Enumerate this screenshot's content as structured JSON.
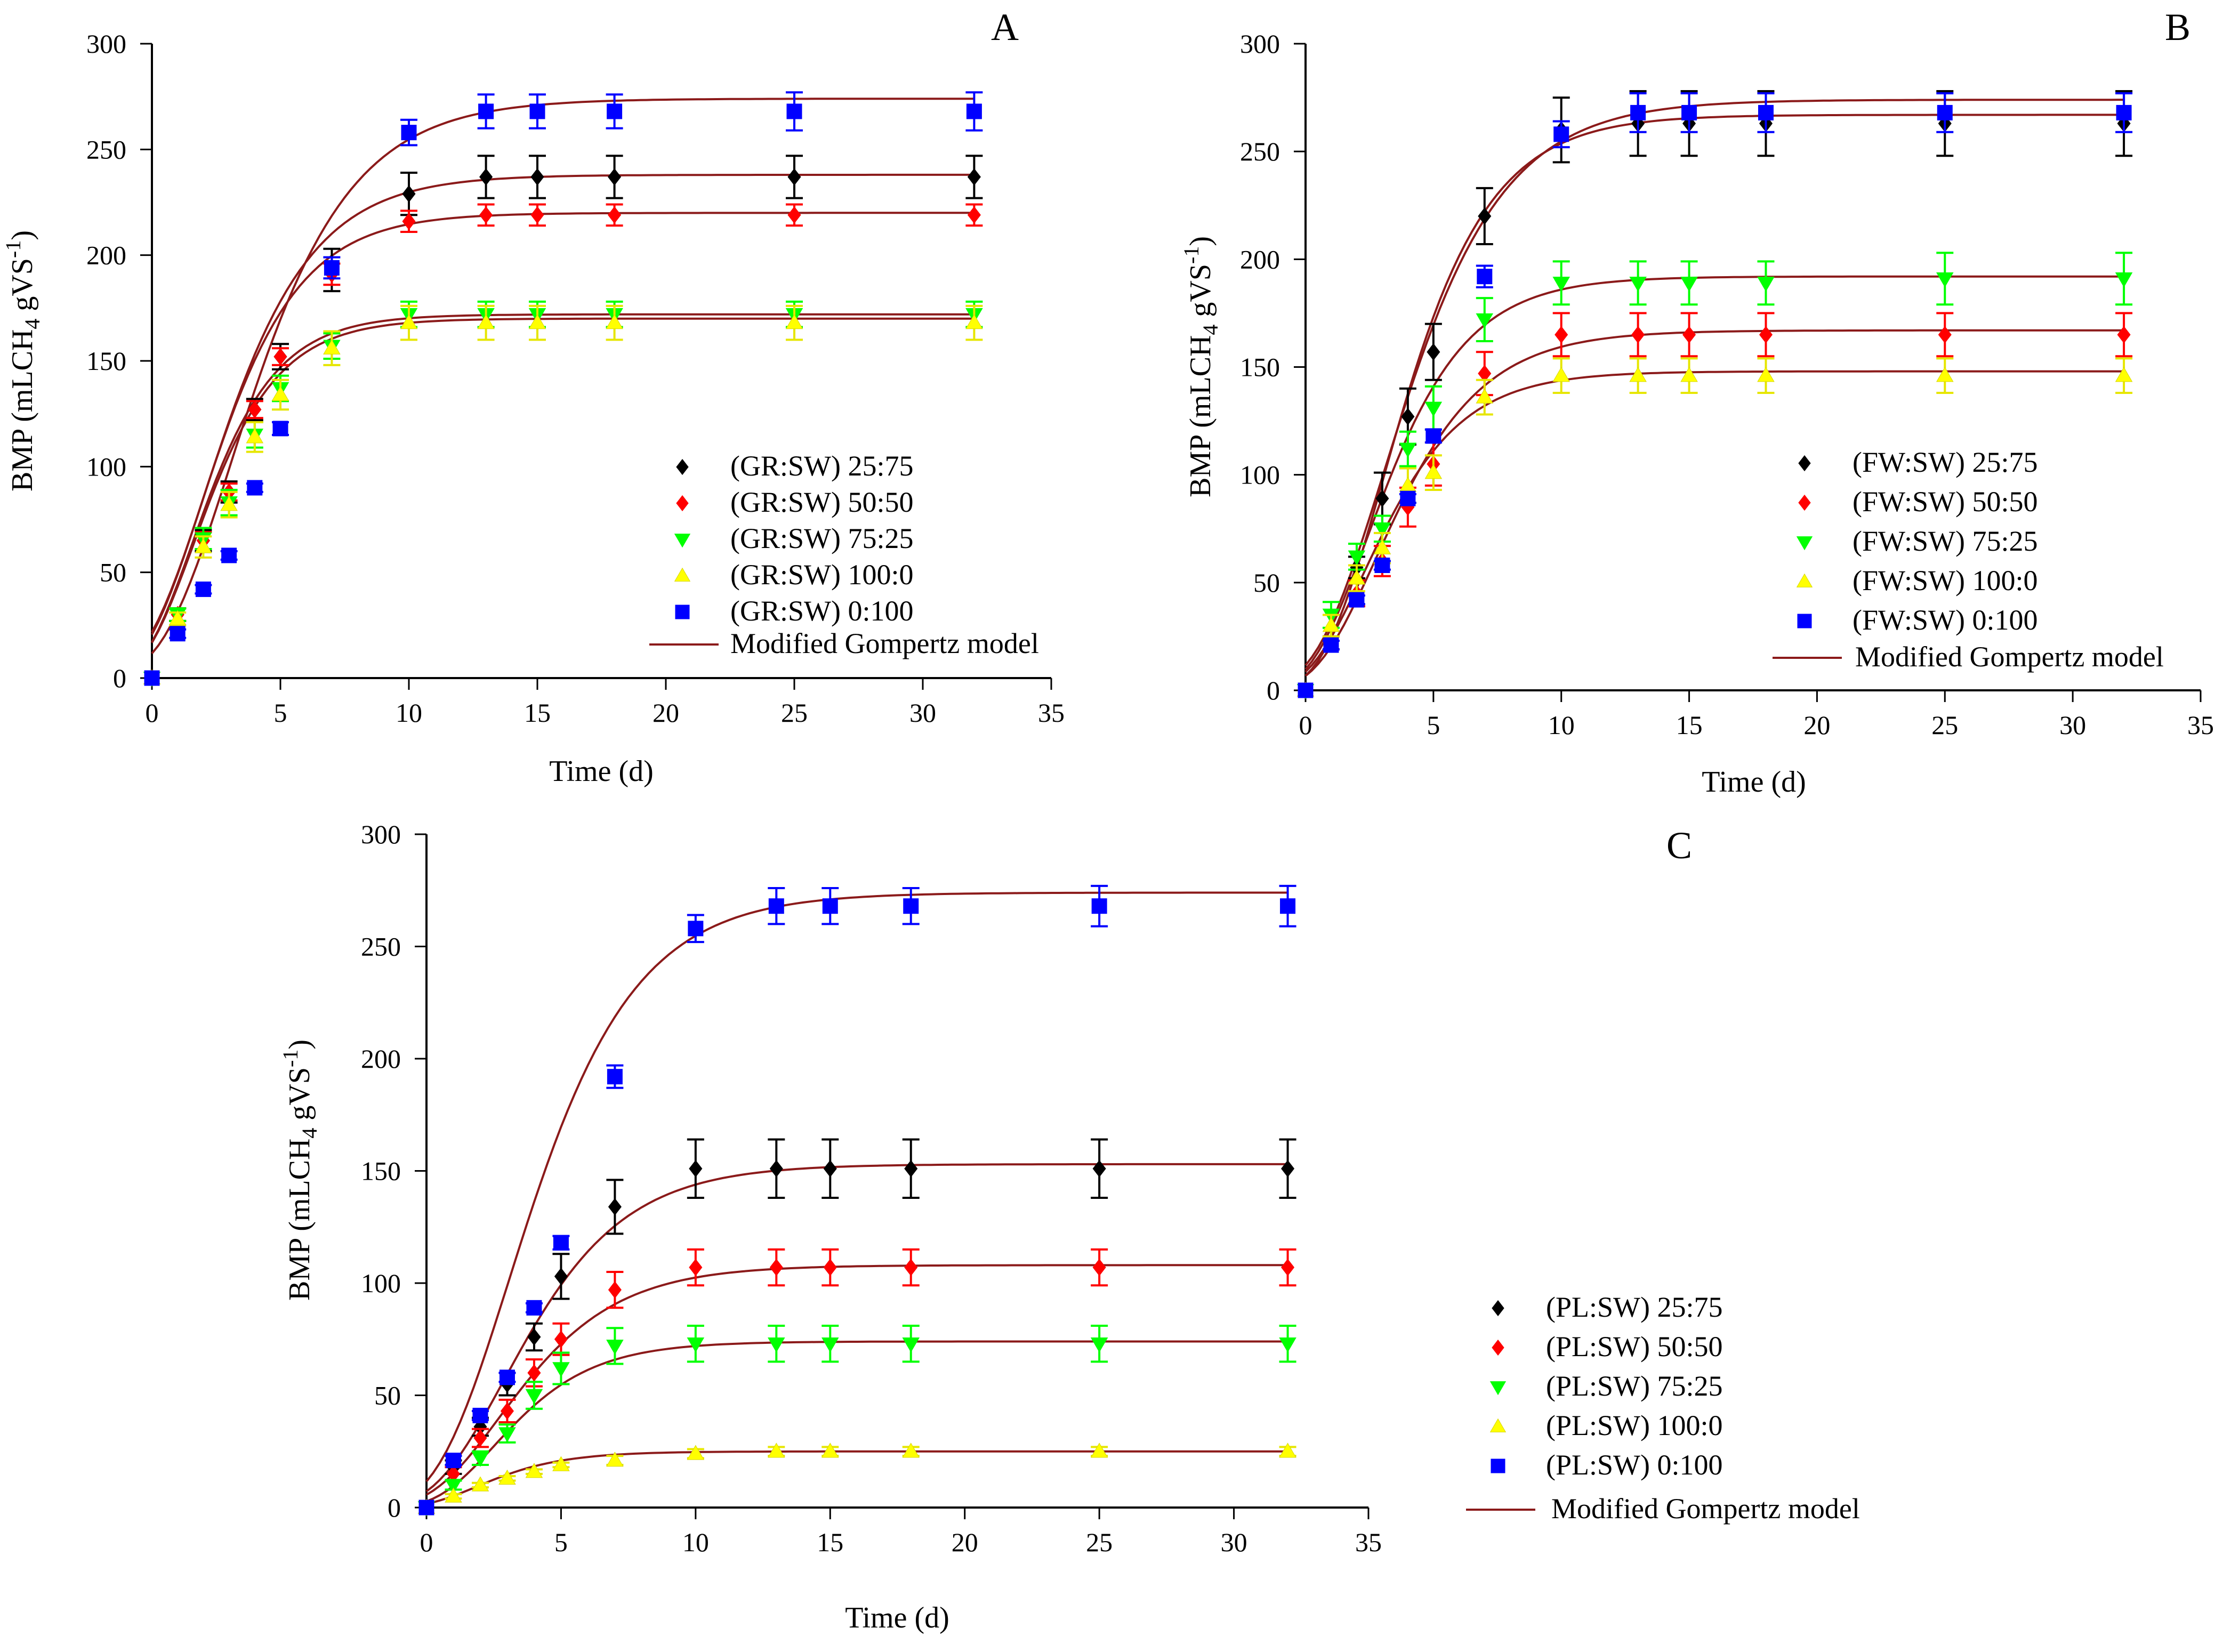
{
  "legend_model_label": "Modified Gompertz model",
  "chart_data": [
    {
      "type": "scatter",
      "panel": "A",
      "xlabel": "Time (d)",
      "ylabel_text": "BMP (mLCH",
      "ylabel_sub": "4",
      "ylabel_mid": " gVS",
      "ylabel_sup": "-1",
      "ylabel_end": ")",
      "xlim": [
        0,
        35
      ],
      "ylim": [
        0,
        300
      ],
      "xticks": [
        0,
        5,
        10,
        15,
        20,
        25,
        30,
        35
      ],
      "yticks": [
        0,
        50,
        100,
        150,
        200,
        250,
        300
      ],
      "legend_position": "bottom-right",
      "legend_model": "Modified Gompertz model",
      "series": [
        {
          "name": "(GR:SW) 25:75",
          "marker": "diamond",
          "color": "#000000",
          "x": [
            0,
            1,
            2,
            3,
            4,
            5,
            7,
            10,
            13,
            15,
            18,
            25,
            32
          ],
          "y": [
            0,
            30,
            65,
            88,
            127,
            152,
            193,
            229,
            237,
            237,
            237,
            237,
            237
          ],
          "err": [
            0,
            3,
            5,
            5,
            5,
            6,
            10,
            10,
            10,
            10,
            10,
            10,
            10
          ]
        },
        {
          "name": "(GR:SW) 50:50",
          "marker": "diamond",
          "color": "#ff0000",
          "x": [
            0,
            1,
            2,
            3,
            4,
            5,
            7,
            10,
            13,
            15,
            18,
            25,
            32
          ],
          "y": [
            0,
            30,
            65,
            88,
            127,
            152,
            191,
            216,
            219,
            219,
            219,
            219,
            219
          ],
          "err": [
            0,
            3,
            4,
            4,
            4,
            4,
            5,
            5,
            5,
            5,
            5,
            5,
            5
          ]
        },
        {
          "name": "(GR:SW) 75:25",
          "marker": "triangle-down",
          "color": "#00ff00",
          "x": [
            0,
            1,
            2,
            3,
            4,
            5,
            7,
            10,
            13,
            15,
            18,
            25,
            32
          ],
          "y": [
            0,
            30,
            66,
            83,
            115,
            137,
            157,
            172,
            172,
            172,
            172,
            172,
            172
          ],
          "err": [
            0,
            3,
            5,
            6,
            6,
            6,
            6,
            6,
            6,
            6,
            6,
            6,
            6
          ]
        },
        {
          "name": "(GR:SW) 100:0",
          "marker": "triangle-up",
          "color": "#ffff00",
          "x": [
            0,
            1,
            2,
            3,
            4,
            5,
            7,
            10,
            13,
            15,
            18,
            25,
            32
          ],
          "y": [
            0,
            28,
            62,
            82,
            114,
            134,
            156,
            168,
            168,
            168,
            168,
            168,
            168
          ],
          "err": [
            0,
            3,
            5,
            6,
            7,
            7,
            8,
            8,
            8,
            8,
            8,
            8,
            8
          ]
        },
        {
          "name": "(GR:SW) 0:100",
          "marker": "square",
          "color": "#0000ff",
          "x": [
            0,
            1,
            2,
            3,
            4,
            5,
            7,
            10,
            13,
            15,
            18,
            25,
            32
          ],
          "y": [
            0,
            21,
            42,
            58,
            90,
            118,
            194,
            258,
            268,
            268,
            268,
            268,
            268
          ],
          "err": [
            0,
            2,
            2,
            2,
            2,
            3,
            5,
            6,
            8,
            8,
            8,
            9,
            9
          ]
        }
      ],
      "model_curves": [
        {
          "P": 238,
          "Rm": 37,
          "lambda": -0.3
        },
        {
          "P": 220,
          "Rm": 37,
          "lambda": -0.3
        },
        {
          "P": 172,
          "Rm": 34,
          "lambda": -0.3
        },
        {
          "P": 170,
          "Rm": 33,
          "lambda": -0.3
        },
        {
          "P": 274,
          "Rm": 38,
          "lambda": 0.4
        }
      ]
    },
    {
      "type": "scatter",
      "panel": "B",
      "xlabel": "Time (d)",
      "ylabel_text": "BMP (mLCH",
      "ylabel_sub": "4",
      "ylabel_mid": " gVS",
      "ylabel_sup": "-1",
      "ylabel_end": ")",
      "xlim": [
        0,
        35
      ],
      "ylim": [
        0,
        300
      ],
      "xticks": [
        0,
        5,
        10,
        15,
        20,
        25,
        30,
        35
      ],
      "yticks": [
        0,
        50,
        100,
        150,
        200,
        250,
        300
      ],
      "legend_position": "bottom-right",
      "legend_model": "Modified Gompertz model",
      "series": [
        {
          "name": "(FW:SW) 25:75",
          "marker": "diamond",
          "color": "#000000",
          "x": [
            0,
            1,
            2,
            3,
            4,
            5,
            7,
            10,
            13,
            15,
            18,
            25,
            32
          ],
          "y": [
            0,
            22,
            57,
            89,
            127,
            157,
            220,
            260,
            263,
            263,
            263,
            263,
            263
          ],
          "err": [
            0,
            3,
            5,
            12,
            13,
            13,
            13,
            15,
            15,
            15,
            15,
            15,
            15
          ]
        },
        {
          "name": "(FW:SW) 50:50",
          "marker": "diamond",
          "color": "#ff0000",
          "x": [
            0,
            1,
            2,
            3,
            4,
            5,
            7,
            10,
            13,
            15,
            18,
            25,
            32
          ],
          "y": [
            0,
            22,
            45,
            60,
            85,
            105,
            147,
            165,
            165,
            165,
            165,
            165,
            165
          ],
          "err": [
            0,
            3,
            6,
            7,
            9,
            10,
            10,
            10,
            10,
            10,
            10,
            10,
            10
          ]
        },
        {
          "name": "(FW:SW) 75:25",
          "marker": "triangle-down",
          "color": "#00ff00",
          "x": [
            0,
            1,
            2,
            3,
            4,
            5,
            7,
            10,
            13,
            15,
            18,
            25,
            32
          ],
          "y": [
            0,
            35,
            62,
            75,
            112,
            131,
            172,
            189,
            189,
            189,
            189,
            191,
            191
          ],
          "err": [
            0,
            6,
            6,
            6,
            8,
            10,
            10,
            10,
            10,
            10,
            10,
            12,
            12
          ]
        },
        {
          "name": "(FW:SW) 100:0",
          "marker": "triangle-up",
          "color": "#ffff00",
          "x": [
            0,
            1,
            2,
            3,
            4,
            5,
            7,
            10,
            13,
            15,
            18,
            25,
            32
          ],
          "y": [
            0,
            30,
            52,
            66,
            95,
            101,
            136,
            146,
            146,
            146,
            146,
            146,
            146
          ],
          "err": [
            0,
            5,
            6,
            7,
            8,
            8,
            8,
            8,
            8,
            8,
            8,
            8,
            8
          ]
        },
        {
          "name": "(FW:SW) 0:100",
          "marker": "square",
          "color": "#0000ff",
          "x": [
            0,
            1,
            2,
            3,
            4,
            5,
            7,
            10,
            13,
            15,
            18,
            25,
            32
          ],
          "y": [
            0,
            21,
            42,
            58,
            89,
            118,
            192,
            258,
            268,
            268,
            268,
            268,
            268
          ],
          "err": [
            0,
            2,
            2,
            2,
            2,
            3,
            5,
            6,
            9,
            9,
            9,
            9,
            9
          ]
        }
      ],
      "model_curves": [
        {
          "P": 267,
          "Rm": 42,
          "lambda": 0.7
        },
        {
          "P": 167,
          "Rm": 26,
          "lambda": 0.4
        },
        {
          "P": 192,
          "Rm": 32,
          "lambda": 0.2
        },
        {
          "P": 148,
          "Rm": 25,
          "lambda": 0.1
        },
        {
          "P": 274,
          "Rm": 38,
          "lambda": 0.4
        }
      ]
    },
    {
      "type": "scatter",
      "panel": "C",
      "xlabel": "Time (d)",
      "ylabel_text": "BMP (mLCH",
      "ylabel_sub": "4",
      "ylabel_mid": " gVS",
      "ylabel_sup": "-1",
      "ylabel_end": ")",
      "xlim": [
        0,
        35
      ],
      "ylim": [
        0,
        300
      ],
      "xticks": [
        0,
        5,
        10,
        15,
        20,
        25,
        30,
        35
      ],
      "yticks": [
        0,
        50,
        100,
        150,
        200,
        250,
        300
      ],
      "legend_position": "outside-right",
      "legend_model": "Modified Gompertz model",
      "series": [
        {
          "name": "(PL:SW) 25:75",
          "marker": "diamond",
          "color": "#000000",
          "x": [
            0,
            1,
            2,
            3,
            4,
            5,
            7,
            10,
            13,
            15,
            18,
            25,
            32
          ],
          "y": [
            0,
            18,
            36,
            55,
            76,
            103,
            134,
            151,
            151,
            151,
            151,
            151,
            151
          ],
          "err": [
            0,
            3,
            4,
            5,
            6,
            10,
            12,
            13,
            13,
            13,
            13,
            13,
            13
          ]
        },
        {
          "name": "(PL:SW) 50:50",
          "marker": "diamond",
          "color": "#ff0000",
          "x": [
            0,
            1,
            2,
            3,
            4,
            5,
            7,
            10,
            13,
            15,
            18,
            25,
            32
          ],
          "y": [
            0,
            15,
            31,
            43,
            60,
            75,
            97,
            107,
            107,
            107,
            107,
            107,
            107
          ],
          "err": [
            0,
            3,
            4,
            5,
            6,
            7,
            8,
            8,
            8,
            8,
            8,
            8,
            8
          ]
        },
        {
          "name": "(PL:SW) 75:25",
          "marker": "triangle-down",
          "color": "#00ff00",
          "x": [
            0,
            1,
            2,
            3,
            4,
            5,
            7,
            10,
            13,
            15,
            18,
            25,
            32
          ],
          "y": [
            0,
            10,
            22,
            33,
            50,
            62,
            72,
            73,
            73,
            73,
            73,
            73,
            73
          ],
          "err": [
            0,
            2,
            3,
            4,
            6,
            7,
            8,
            8,
            8,
            8,
            8,
            8,
            8
          ]
        },
        {
          "name": "(PL:SW) 100:0",
          "marker": "triangle-up",
          "color": "#ffff00",
          "x": [
            0,
            1,
            2,
            3,
            4,
            5,
            7,
            10,
            13,
            15,
            18,
            25,
            32
          ],
          "y": [
            0,
            5,
            10,
            13,
            16,
            19,
            21,
            24,
            25,
            25,
            25,
            25,
            25
          ],
          "err": [
            0,
            1,
            1,
            1,
            1,
            1,
            2,
            2,
            2,
            2,
            2,
            2,
            2
          ]
        },
        {
          "name": "(PL:SW) 0:100",
          "marker": "square",
          "color": "#0000ff",
          "x": [
            0,
            1,
            2,
            3,
            4,
            5,
            7,
            10,
            13,
            15,
            18,
            25,
            32
          ],
          "y": [
            0,
            21,
            41,
            58,
            89,
            118,
            192,
            258,
            268,
            268,
            268,
            268,
            268
          ],
          "err": [
            0,
            2,
            2,
            2,
            2,
            3,
            5,
            6,
            8,
            8,
            8,
            9,
            9
          ]
        }
      ],
      "model_curves": [
        {
          "P": 153,
          "Rm": 22,
          "lambda": 0.3
        },
        {
          "P": 108,
          "Rm": 16,
          "lambda": 0.2
        },
        {
          "P": 74,
          "Rm": 13,
          "lambda": 0.4
        },
        {
          "P": 25,
          "Rm": 5,
          "lambda": 0.0
        },
        {
          "P": 274,
          "Rm": 38,
          "lambda": 0.4
        }
      ]
    }
  ],
  "colors": {
    "axis": "#000000",
    "model_line": "#8b1a1a"
  }
}
